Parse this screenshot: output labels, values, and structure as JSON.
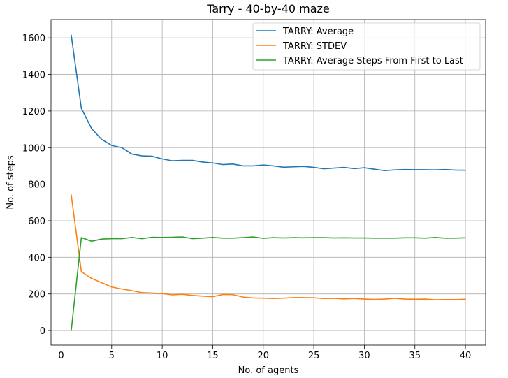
{
  "chart_data": {
    "type": "line",
    "title": "Tarry - 40-by-40 maze",
    "xlabel": "No. of agents",
    "ylabel": "No. of steps",
    "xlim": [
      -1,
      42
    ],
    "ylim": [
      -80,
      1700
    ],
    "xticks": [
      0,
      5,
      10,
      15,
      20,
      25,
      30,
      35,
      40
    ],
    "yticks": [
      0,
      200,
      400,
      600,
      800,
      1000,
      1200,
      1400,
      1600
    ],
    "grid": true,
    "legend_position": "top-right",
    "x": [
      1,
      2,
      3,
      4,
      5,
      6,
      7,
      8,
      9,
      10,
      11,
      12,
      13,
      14,
      15,
      16,
      17,
      18,
      19,
      20,
      21,
      22,
      23,
      24,
      25,
      26,
      27,
      28,
      29,
      30,
      31,
      32,
      33,
      34,
      35,
      36,
      37,
      38,
      39,
      40
    ],
    "series": [
      {
        "name": "TARRY: Average",
        "color": "#1f77b4",
        "values": [
          1615,
          1215,
          1105,
          1045,
          1012,
          1000,
          965,
          955,
          953,
          938,
          928,
          930,
          930,
          921,
          916,
          907,
          910,
          900,
          900,
          905,
          900,
          893,
          895,
          897,
          892,
          884,
          888,
          892,
          885,
          890,
          882,
          874,
          878,
          880,
          879,
          879,
          878,
          880,
          877,
          876
        ]
      },
      {
        "name": "TARRY: STDEV",
        "color": "#ff7f0e",
        "values": [
          742,
          322,
          285,
          262,
          238,
          227,
          218,
          207,
          205,
          202,
          195,
          198,
          192,
          188,
          185,
          197,
          196,
          183,
          178,
          177,
          175,
          177,
          180,
          180,
          179,
          175,
          176,
          173,
          175,
          172,
          170,
          172,
          176,
          172,
          171,
          172,
          168,
          169,
          169,
          171
        ]
      },
      {
        "name": "TARRY: Average Steps From First to Last",
        "color": "#2ca02c",
        "values": [
          0,
          508,
          488,
          500,
          502,
          502,
          509,
          502,
          510,
          509,
          510,
          512,
          502,
          505,
          509,
          505,
          505,
          508,
          512,
          504,
          508,
          506,
          508,
          507,
          508,
          508,
          506,
          507,
          506,
          506,
          505,
          505,
          505,
          507,
          507,
          505,
          509,
          505,
          505,
          507
        ]
      }
    ]
  }
}
